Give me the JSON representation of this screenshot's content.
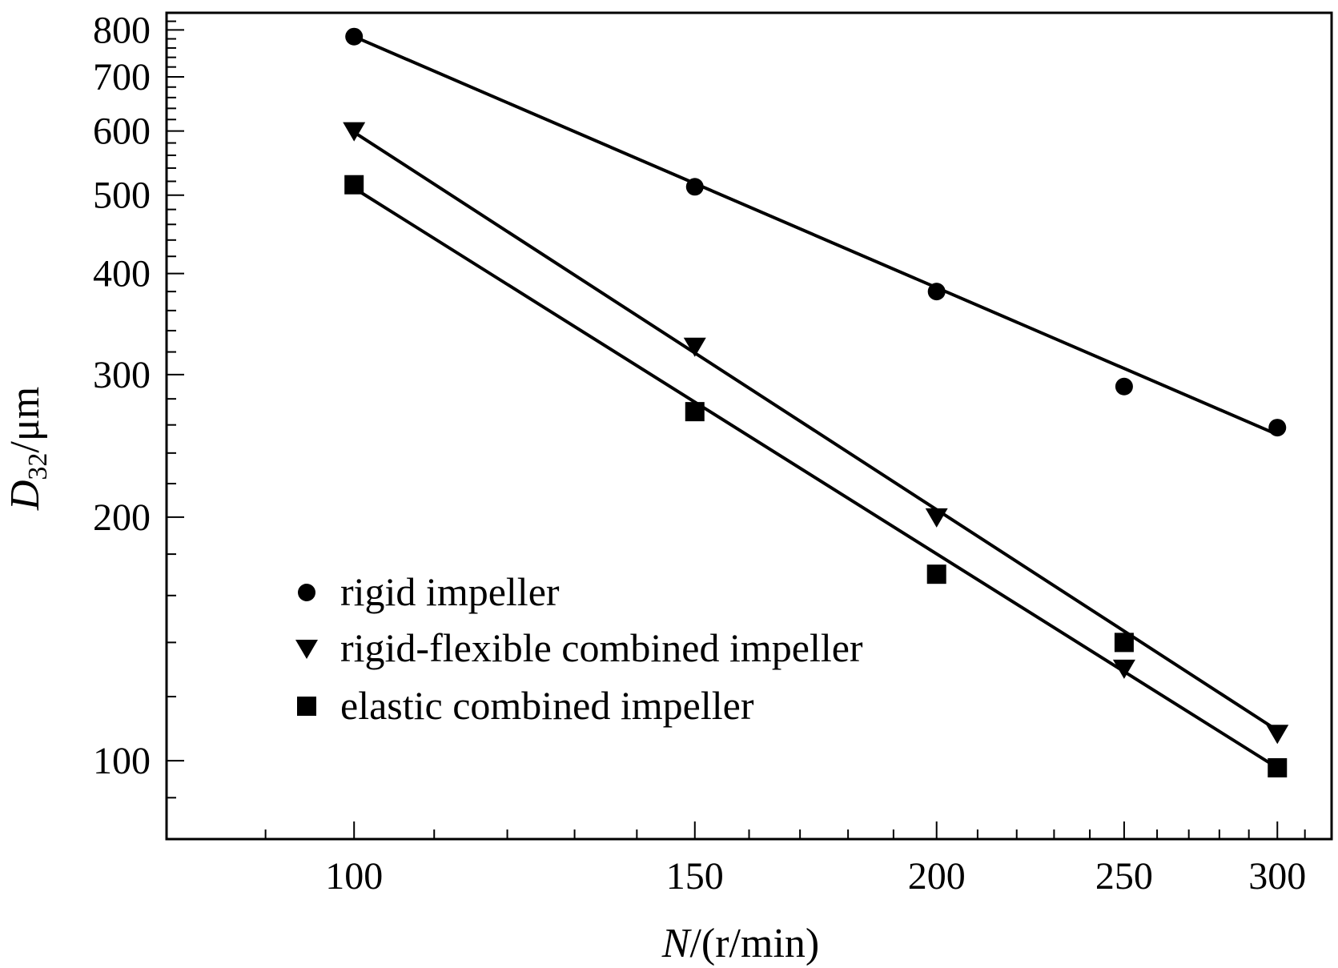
{
  "chart_data": {
    "type": "scatter",
    "x_scale": "log",
    "y_scale": "log",
    "xlim": [
      80,
      320
    ],
    "ylim": [
      80,
      840
    ],
    "grid": false,
    "legend_position": "bottom-left",
    "x_ticks": [
      100,
      150,
      200,
      250,
      300
    ],
    "x_tick_labels": [
      "100",
      "150",
      "200",
      "250",
      "300"
    ],
    "y_ticks": [
      100,
      200,
      300,
      400,
      500,
      600,
      700,
      800
    ],
    "y_tick_labels": [
      "100",
      "200",
      "300",
      "400",
      "500",
      "600",
      "700",
      "800"
    ],
    "xlabel": {
      "italic": "N",
      "rest": "/(r/min)"
    },
    "ylabel": {
      "italic": "D",
      "sub": "32",
      "rest": "/μm"
    },
    "series": [
      {
        "name": "rigid impeller",
        "marker": "circle",
        "x": [
          100,
          150,
          200,
          250,
          300
        ],
        "y": [
          785,
          512,
          380,
          290,
          258
        ],
        "fit": [
          [
            100,
            785
          ],
          [
            300,
            253
          ]
        ]
      },
      {
        "name": "rigid-flexible combined impeller",
        "marker": "triangle-down",
        "x": [
          100,
          150,
          200,
          250,
          300
        ],
        "y": [
          600,
          325,
          200,
          130,
          108
        ],
        "fit": [
          [
            100,
            598
          ],
          [
            300,
            109
          ]
        ]
      },
      {
        "name": "elastic combined impeller",
        "marker": "square",
        "x": [
          100,
          150,
          200,
          250,
          300
        ],
        "y": [
          515,
          270,
          170,
          140,
          98
        ],
        "fit": [
          [
            100,
            510
          ],
          [
            300,
            98
          ]
        ]
      }
    ]
  }
}
